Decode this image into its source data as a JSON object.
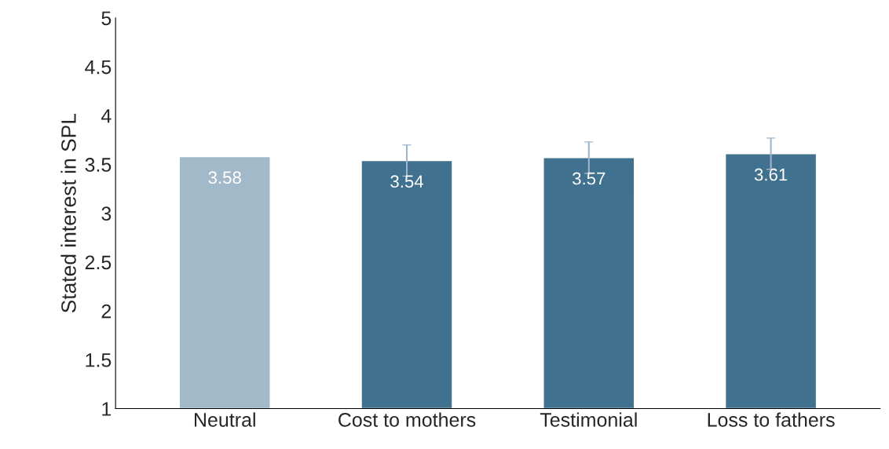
{
  "chart_data": {
    "type": "bar",
    "ylabel": "Stated interest in SPL",
    "categories": [
      "Neutral",
      "Cost to mothers",
      "Testimonial",
      "Loss to fathers"
    ],
    "values": [
      3.58,
      3.54,
      3.57,
      3.61
    ],
    "colors": [
      "#a2b9c9",
      "#40728f",
      "#40728f",
      "#40728f"
    ],
    "errors": [
      null,
      0.16,
      0.16,
      0.16
    ],
    "ylim": [
      1,
      5
    ],
    "yticks": [
      1,
      1.5,
      2,
      2.5,
      3,
      3.5,
      4,
      4.5,
      5
    ],
    "data_labels": true,
    "grid": false,
    "legend": false
  }
}
